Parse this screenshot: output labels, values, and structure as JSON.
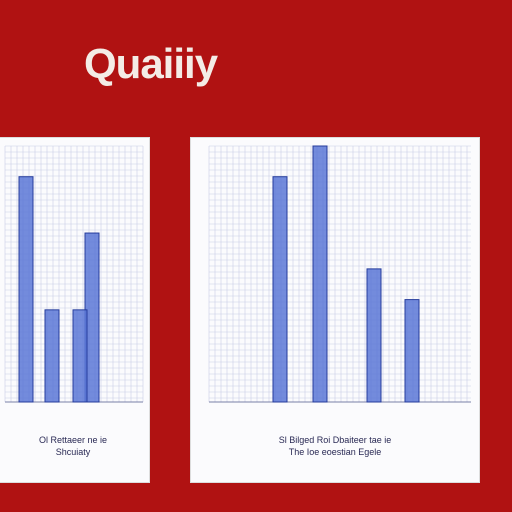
{
  "title": "Quaiiiy",
  "colors": {
    "background": "#b01212",
    "panel": "#fbfbfd",
    "grid": "#c9cde6",
    "bar_fill": "#5b77d6",
    "bar_stroke": "#243b9c"
  },
  "chart_data": [
    {
      "type": "bar",
      "categories": [
        "",
        "",
        "",
        ""
      ],
      "values": [
        88,
        36,
        66,
        36
      ],
      "ylim": [
        0,
        100
      ],
      "grid": true,
      "caption_lines": [
        "Ol Rettaeer ne ie",
        "Shcuiaty"
      ]
    },
    {
      "type": "bar",
      "categories": [
        "",
        "",
        "",
        ""
      ],
      "values": [
        88,
        100,
        52,
        40
      ],
      "ylim": [
        0,
        100
      ],
      "grid": true,
      "caption_lines": [
        "Sl Bilged Roi Dbaiteer tae ie",
        "The Ioe eoestian Egele"
      ]
    }
  ]
}
